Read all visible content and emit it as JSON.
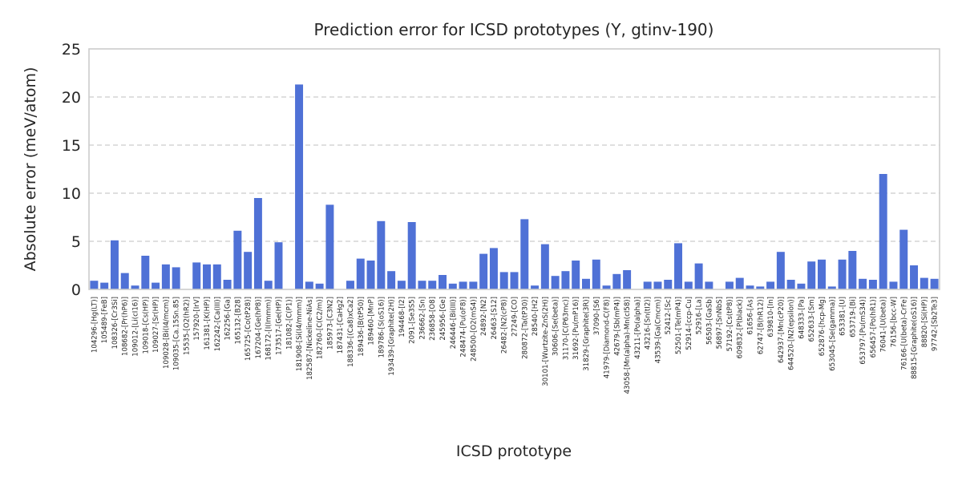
{
  "chart_data": {
    "type": "bar",
    "title": "Prediction error for ICSD prototypes (Y, gtinv-190)",
    "xlabel": "ICSD prototype",
    "ylabel": "Absolute error (meV/atom)",
    "ylim": [
      0,
      25
    ],
    "yticks": [
      0,
      5,
      10,
      15,
      20,
      25
    ],
    "grid": true,
    "color": "#4f71d6",
    "categories": [
      "104296-[Hg(LT)]",
      "105489-[FeB]",
      "108326-[Cr3Si]",
      "108682-[Pr(hP6)]",
      "109012-[Li(cI16)]",
      "109018-[Cs(HP)]",
      "109027-[Sr(HP)]",
      "109028-[Bi(I4/mcm)]",
      "109035-[Ca.15Sn.85]",
      "15535-[O2(hR2)]",
      "157920-[IrV]",
      "161381-[K(HP)]",
      "162242-[Ca(III)]",
      "162256-[Ga]",
      "165132-[B28]",
      "165725-[Co(tP28)]",
      "167204-[Ge(hP8)]",
      "168172-[I(Immm)]",
      "173517-[Ge(HP)]",
      "181082-[C(P1)]",
      "181908-[Si(I4/mmm)]",
      "182587-[Nickeline-NiAs]",
      "182760-[C(C2/m)]",
      "185973-[C3N2]",
      "187431-[CaHg2]",
      "188336-[(Ca8)xCa2]",
      "189436-[B(tP50)]",
      "189460-[MnP]",
      "189786-[S(oS16)]",
      "193439-[Graphite(2H)]",
      "194468-[I2]",
      "2091-[Se3S5]",
      "236662-[Sn]",
      "236858-[O8]",
      "245956-[Ge]",
      "246446-[Bi(III)]",
      "248474-[Pu(oF8)]",
      "248500-[O2(mS4)]",
      "24892-[N2]",
      "26463-[S12]",
      "26482-[N2(cP8)]",
      "27249-[CO]",
      "280872-[Ta(tP30)]",
      "28540-[H2]",
      "30101-[Wurtzite-ZnS(2H)]",
      "30606-[Se(beta)]",
      "31170-[C(P63mc)]",
      "31692-[Pu(mP16)]",
      "31829-[Graphite(3R)]",
      "37090-[S6]",
      "41979-[Diamond-C(F8)]",
      "42679-[Sb(mP4)]",
      "43058-[Mn(alpha)-Mn(cI58)]",
      "43211-[Po(alpha)]",
      "43216-[Sn(tI2)]",
      "43539-[Ga(Cmcm)]",
      "52412-[Sc]",
      "52501-[Te(mP4)]",
      "52914-[ccp-Cu]",
      "52916-[La]",
      "56503-[GaSb]",
      "56897-[SnNbS]",
      "57192-[Cs(tP8)]",
      "609832-[P(black)]",
      "61656-[As]",
      "62747-[B(hR12)]",
      "639810-[In]",
      "642937-[Mn(cP20)]",
      "644520-[N2(epsilon)]",
      "648333-[Pa]",
      "652633-[Sm]",
      "652876-[hcp-Mg]",
      "653045-[Se(gamma)]",
      "653381-[U]",
      "653719-[Bi]",
      "653797-[Pu(mS34)]",
      "656457-[Po(hR1)]",
      "76041-[U(beta)]",
      "76156-[bcc-W]",
      "76166-[U(beta)-CrFe]",
      "88815-[Graphite(oS16)]",
      "88820-[Si(HP)]",
      "97742-[Sb2Te3]"
    ],
    "values": [
      0.9,
      0.7,
      5.1,
      1.7,
      0.4,
      3.5,
      0.7,
      2.6,
      2.3,
      0.0,
      2.8,
      2.6,
      2.6,
      1.0,
      6.1,
      3.9,
      9.5,
      0.9,
      4.9,
      0.0,
      21.3,
      0.8,
      0.6,
      8.8,
      0.0,
      0.9,
      3.2,
      3.0,
      7.1,
      1.9,
      0.9,
      7.0,
      0.9,
      0.9,
      1.5,
      0.6,
      0.8,
      0.8,
      3.7,
      4.3,
      1.8,
      1.8,
      7.3,
      0.4,
      4.7,
      1.4,
      1.9,
      3.0,
      1.1,
      3.1,
      0.4,
      1.6,
      2.0,
      0.0,
      0.8,
      0.8,
      1.0,
      4.8,
      0.8,
      2.7,
      0.8,
      0.0,
      0.8,
      1.2,
      0.4,
      0.3,
      0.8,
      3.9,
      1.0,
      0.6,
      2.9,
      3.1,
      0.3,
      3.1,
      4.0,
      1.1,
      1.0,
      12.0,
      0.8,
      6.2,
      2.5,
      1.2,
      1.1
    ]
  }
}
